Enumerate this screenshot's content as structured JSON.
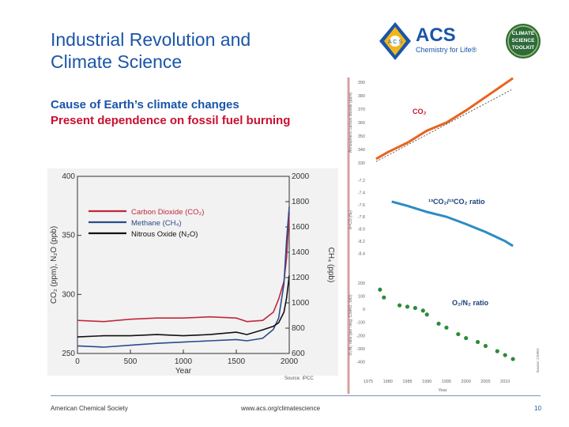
{
  "slide": {
    "title_line1": "Industrial Revolution and",
    "title_line2": "Climate Science",
    "bullet1": "Cause of Earth’s climate changes",
    "bullet2": "Present dependence on fossil fuel burning",
    "source": "Source: IPCC",
    "footer_left": "American Chemical Society",
    "footer_center": "www.acs.org/climatescience",
    "page_number": "10"
  },
  "logos": {
    "acs_text": "ACS",
    "acs_tagline": "Chemistry for Life®",
    "toolkit_line1": "CLIMATE",
    "toolkit_line2": "SCIENCE",
    "toolkit_line3": "TOOLKIT",
    "acs_seal_letters": "A C S"
  },
  "colors": {
    "title_blue": "#1a55a8",
    "highlight_red": "#c8102e",
    "co2_orange": "#e8641e",
    "ratio_blue": "#2b8cc4",
    "o2_green": "#2e8b3a"
  },
  "chart_data": [
    {
      "type": "line",
      "xlabel": "Year",
      "ylabel": "CO₂ (ppm), N₂O (ppb)",
      "y2label": "CH₄ (ppb)",
      "xlim": [
        0,
        2000
      ],
      "ylim": [
        250,
        400
      ],
      "y2lim": [
        600,
        2000
      ],
      "x_ticks": [
        "0",
        "500",
        "1000",
        "1500",
        "2000"
      ],
      "y_ticks": [
        "250",
        "300",
        "350",
        "400"
      ],
      "y2_ticks": [
        "600",
        "800",
        "1000",
        "1200",
        "1400",
        "1600",
        "1800",
        "2000"
      ],
      "grid": false,
      "legend_position": "top-left",
      "series": [
        {
          "name": "Carbon Dioxide (CO₂)",
          "color": "#c0283c",
          "axis": "left",
          "x": [
            0,
            250,
            500,
            750,
            1000,
            1250,
            1500,
            1600,
            1750,
            1850,
            1900,
            1950,
            1975,
            2000
          ],
          "y": [
            278,
            277,
            279,
            280,
            280,
            281,
            280,
            277,
            278,
            285,
            296,
            311,
            331,
            369
          ]
        },
        {
          "name": "Methane (CH₄)",
          "color": "#2b4b8c",
          "axis": "right",
          "x": [
            0,
            250,
            500,
            750,
            1000,
            1250,
            1500,
            1600,
            1750,
            1850,
            1900,
            1950,
            1975,
            2000
          ],
          "y": [
            660,
            650,
            665,
            680,
            690,
            700,
            710,
            700,
            720,
            790,
            880,
            1150,
            1500,
            1760
          ]
        },
        {
          "name": "Nitrous Oxide (N₂O)",
          "color": "#111111",
          "axis": "left",
          "x": [
            0,
            250,
            500,
            750,
            1000,
            1250,
            1500,
            1600,
            1750,
            1850,
            1900,
            1950,
            1975,
            2000
          ],
          "y": [
            264,
            265,
            265,
            266,
            265,
            266,
            268,
            266,
            270,
            273,
            276,
            285,
            297,
            316
          ]
        }
      ]
    },
    {
      "type": "line",
      "title": "CO₂",
      "ylabel": "Atmospheric carbon dioxide (ppm)",
      "y_ticks": [
        "330",
        "340",
        "350",
        "360",
        "370",
        "380",
        "390"
      ],
      "ylim": [
        330,
        390
      ],
      "series": [
        {
          "color": "#e8641e",
          "x": [
            1977,
            1980,
            1985,
            1990,
            1995,
            2000,
            2005,
            2010,
            2012
          ],
          "y": [
            333,
            338,
            345,
            354,
            360,
            369,
            379,
            389,
            393
          ]
        }
      ]
    },
    {
      "type": "line",
      "title": "¹³CO₂/¹²CO₂ ratio",
      "ylabel": "δ¹³CO₂(‰)",
      "y_ticks": [
        "-7.2",
        "-7.4",
        "-7.6",
        "-7.8",
        "-8.0",
        "-8.2",
        "-8.4"
      ],
      "ylim": [
        -8.5,
        -7.2
      ],
      "series": [
        {
          "color": "#2b8cc4",
          "x": [
            1981,
            1985,
            1990,
            1995,
            2000,
            2005,
            2010,
            2012
          ],
          "y": [
            -7.55,
            -7.62,
            -7.72,
            -7.8,
            -7.92,
            -8.05,
            -8.2,
            -8.28
          ]
        }
      ]
    },
    {
      "type": "scatter",
      "title": "O₂/N₂ ratio",
      "ylabel": "O₂/N₂ ratio (per meg, CSIRO, SIO)",
      "xlabel": "Year",
      "x_ticks": [
        "1975",
        "1980",
        "1985",
        "1990",
        "1995",
        "2000",
        "2005",
        "2010"
      ],
      "y_ticks": [
        "200",
        "100",
        "0",
        "-100",
        "-200",
        "-300",
        "-400"
      ],
      "xlim": [
        1975,
        2013
      ],
      "ylim": [
        -440,
        200
      ],
      "source_note": "Source: CSIRO",
      "series": [
        {
          "color": "#2e8b3a",
          "x": [
            1978,
            1979,
            1983,
            1985,
            1987,
            1989,
            1990,
            1993,
            1995,
            1998,
            2000,
            2003,
            2005,
            2008,
            2010,
            2012
          ],
          "y": [
            150,
            90,
            30,
            20,
            10,
            -10,
            -40,
            -110,
            -140,
            -190,
            -220,
            -250,
            -280,
            -320,
            -350,
            -380
          ]
        }
      ]
    }
  ]
}
